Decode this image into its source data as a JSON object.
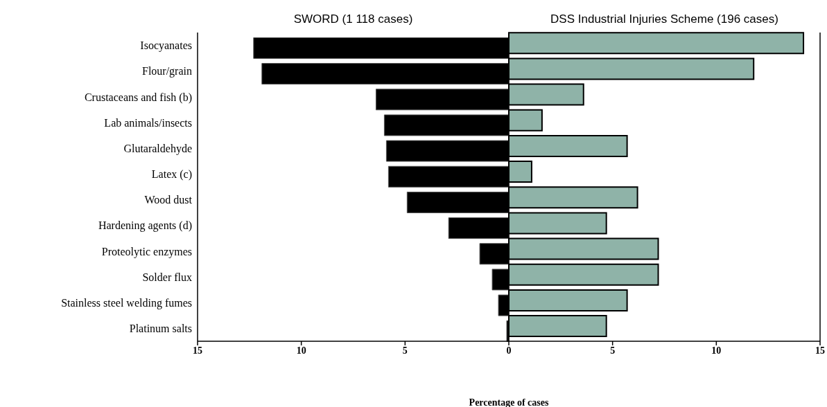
{
  "chart_data": {
    "type": "bar",
    "orientation": "horizontal",
    "xlabel": "Percentage of cases",
    "categories": [
      "Isocyanates",
      "Flour/grain",
      "Crustaceans and fish (b)",
      "Lab animals/insects",
      "Glutaraldehyde",
      "Latex (c)",
      "Wood dust",
      "Hardening agents (d)",
      "Proteolytic enzymes",
      "Solder flux",
      "Stainless steel welding fumes",
      "Platinum salts"
    ],
    "series": [
      {
        "name": "SWORD (1 118 cases)",
        "color": "#000000",
        "values": [
          -12.3,
          -11.9,
          -6.4,
          -6.0,
          -5.9,
          -5.8,
          -4.9,
          -2.9,
          -1.4,
          -0.8,
          -0.5,
          -0.1
        ]
      },
      {
        "name": "DSS Industrial Injuries Scheme (196 cases)",
        "color": "#8fb3a8",
        "values": [
          14.2,
          11.8,
          3.6,
          1.6,
          5.7,
          1.1,
          6.2,
          4.7,
          7.2,
          7.2,
          5.7,
          4.7
        ]
      }
    ],
    "xlim": [
      -15,
      15
    ],
    "xticks": [
      {
        "value": -15,
        "label": "15"
      },
      {
        "value": -10,
        "label": "10"
      },
      {
        "value": -5,
        "label": "5"
      },
      0,
      5,
      10,
      15
    ],
    "ref_lines": [
      {
        "axis": "x",
        "value": 0,
        "color": "#000000"
      }
    ],
    "grid": false
  }
}
